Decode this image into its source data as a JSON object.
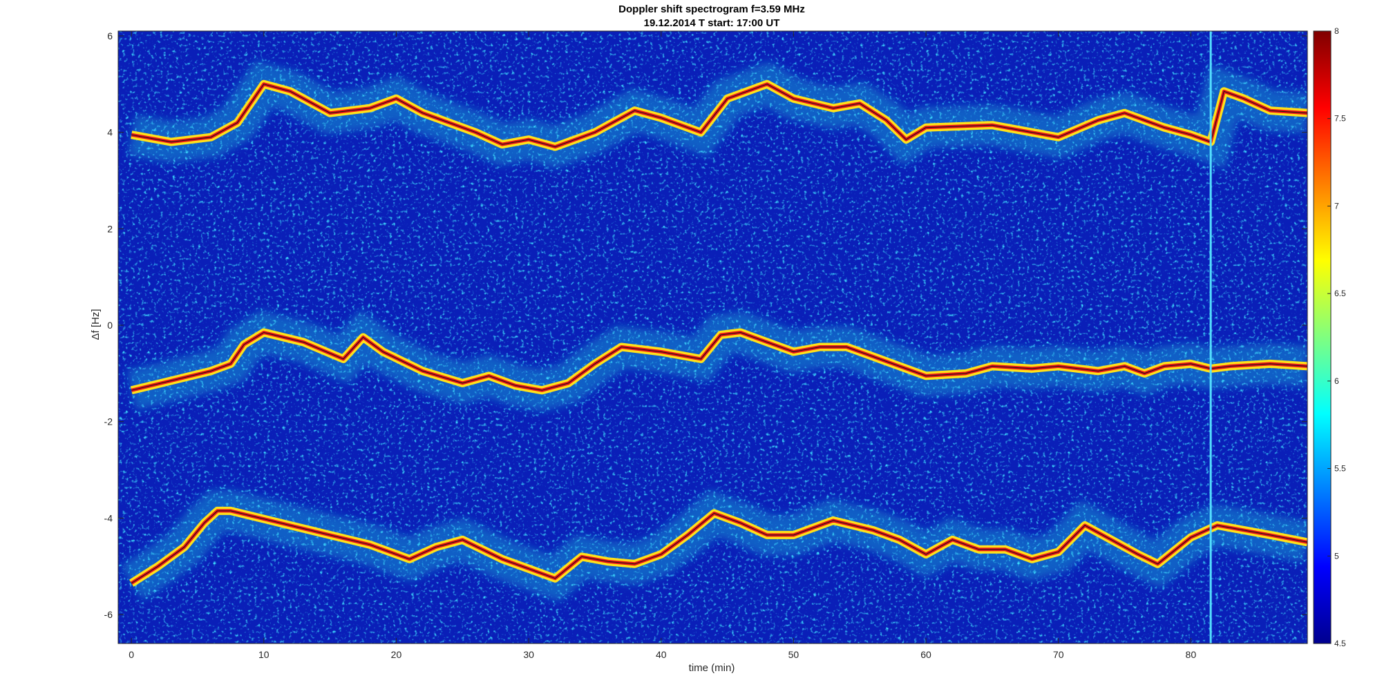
{
  "chart_data": {
    "type": "heatmap",
    "title": "Doppler shift spectrogram f=3.59 MHz",
    "subtitle": "19.12.2014   T start: 17:00 UT",
    "xlabel": "time (min)",
    "ylabel": "Δf [Hz]",
    "xlim": [
      -1,
      88.8
    ],
    "ylim": [
      -6.6,
      6.1
    ],
    "xticks": [
      0,
      10,
      20,
      30,
      40,
      50,
      60,
      70,
      80
    ],
    "yticks": [
      6,
      4,
      2,
      0,
      -2,
      -4,
      -6
    ],
    "colormap": "jet",
    "colorbar": {
      "range": [
        4.5,
        8
      ],
      "ticks": [
        8,
        7.5,
        7,
        6.5,
        6,
        5.5,
        5,
        4.5
      ]
    },
    "background_color": "#0a1fb8",
    "vertical_line": {
      "x": 81.5,
      "color": "#55e0ff"
    },
    "traces": [
      {
        "name": "upper",
        "x": [
          0,
          3,
          6,
          8,
          9,
          10,
          12,
          15,
          18,
          20,
          22,
          24,
          26,
          28,
          30,
          32,
          35,
          38,
          40,
          43,
          45,
          48,
          50,
          53,
          55,
          57,
          58.5,
          60,
          65,
          68,
          70,
          73,
          75,
          78,
          80,
          81.5,
          82.5,
          84,
          86,
          88.8
        ],
        "y": [
          3.95,
          3.8,
          3.9,
          4.2,
          4.6,
          5.0,
          4.85,
          4.4,
          4.5,
          4.7,
          4.4,
          4.2,
          4.0,
          3.75,
          3.85,
          3.7,
          4.0,
          4.45,
          4.3,
          4.0,
          4.7,
          5.0,
          4.7,
          4.5,
          4.6,
          4.25,
          3.85,
          4.1,
          4.15,
          4.0,
          3.9,
          4.25,
          4.4,
          4.1,
          3.95,
          3.8,
          4.85,
          4.7,
          4.45,
          4.4
        ]
      },
      {
        "name": "middle",
        "x": [
          0,
          3,
          6,
          7.5,
          8.5,
          10,
          13,
          16,
          17.5,
          19,
          22,
          25,
          27,
          29,
          31,
          33,
          35,
          37,
          40,
          43,
          44.5,
          46,
          50,
          52,
          54,
          56,
          58,
          60,
          63,
          65,
          68,
          70,
          73,
          75,
          76.5,
          78,
          80,
          81.5,
          83,
          86,
          88.8
        ],
        "y": [
          -1.35,
          -1.15,
          -0.95,
          -0.8,
          -0.4,
          -0.15,
          -0.35,
          -0.7,
          -0.25,
          -0.55,
          -0.95,
          -1.2,
          -1.05,
          -1.25,
          -1.35,
          -1.2,
          -0.8,
          -0.45,
          -0.55,
          -0.7,
          -0.2,
          -0.15,
          -0.55,
          -0.45,
          -0.45,
          -0.65,
          -0.85,
          -1.05,
          -1.0,
          -0.85,
          -0.9,
          -0.85,
          -0.95,
          -0.85,
          -1.0,
          -0.85,
          -0.8,
          -0.9,
          -0.85,
          -0.8,
          -0.85
        ]
      },
      {
        "name": "lower",
        "x": [
          0,
          2,
          4,
          5.5,
          6.5,
          7.5,
          9,
          12,
          15,
          18,
          21,
          23,
          25,
          28,
          30,
          32,
          34,
          36,
          38,
          40,
          42,
          44,
          46,
          48,
          50,
          53,
          56,
          58,
          60,
          62,
          64,
          66,
          68,
          70,
          72,
          74,
          76,
          77.5,
          80,
          82,
          84,
          86,
          88.8
        ],
        "y": [
          -5.35,
          -5.0,
          -4.6,
          -4.1,
          -3.85,
          -3.85,
          -3.95,
          -4.15,
          -4.35,
          -4.55,
          -4.85,
          -4.6,
          -4.45,
          -4.85,
          -5.05,
          -5.25,
          -4.8,
          -4.9,
          -4.95,
          -4.75,
          -4.35,
          -3.9,
          -4.1,
          -4.35,
          -4.35,
          -4.05,
          -4.25,
          -4.45,
          -4.75,
          -4.45,
          -4.65,
          -4.65,
          -4.85,
          -4.7,
          -4.15,
          -4.45,
          -4.75,
          -4.95,
          -4.4,
          -4.15,
          -4.25,
          -4.35,
          -4.5
        ]
      }
    ]
  }
}
